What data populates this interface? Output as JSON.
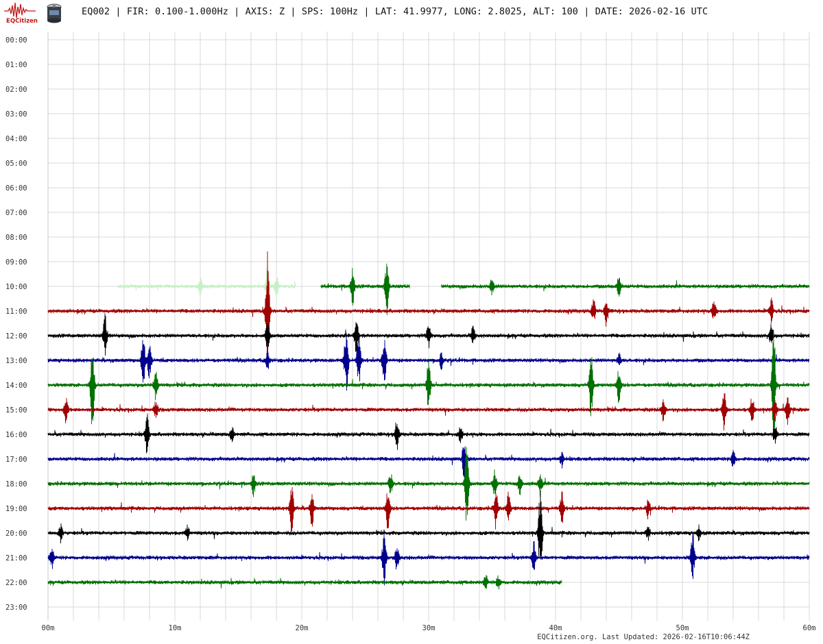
{
  "header": {
    "logo_text": "EQCitizen",
    "title": "EQ002 | FIR: 0.100-1.000Hz | AXIS: Z | SPS: 100Hz | LAT: 41.9977, LONG: 2.8025, ALT: 100 | DATE: 2026-02-16 UTC"
  },
  "footer": {
    "updated": "EQCitizen.org. Last Updated: 2026-02-16T10:06:44Z"
  },
  "colors": {
    "faint_green": "#c8f0c8",
    "green": "#007000",
    "red": "#a00000",
    "black": "#000000",
    "blue": "#00008c",
    "grid": "#d8d8d8",
    "logo_red": "#c01818"
  },
  "chart_data": {
    "type": "line",
    "title": "",
    "xlabel": "",
    "ylabel": "",
    "grid": true,
    "x_unit": "minutes",
    "xlim": [
      0,
      60
    ],
    "x_ticks": [
      "00m",
      "10m",
      "20m",
      "30m",
      "40m",
      "50m",
      "60m"
    ],
    "y_ticks": [
      "00:00",
      "01:00",
      "02:00",
      "03:00",
      "04:00",
      "05:00",
      "06:00",
      "07:00",
      "08:00",
      "09:00",
      "10:00",
      "11:00",
      "12:00",
      "13:00",
      "14:00",
      "15:00",
      "16:00",
      "17:00",
      "18:00",
      "19:00",
      "20:00",
      "21:00",
      "22:00",
      "23:00"
    ],
    "series": [
      {
        "hour": "10:00",
        "color": "faint_green",
        "segments": [
          [
            5.5,
            19.5
          ]
        ],
        "spikes": [
          [
            12.0,
            0.4
          ],
          [
            17.3,
            1.0
          ],
          [
            18.0,
            0.5
          ]
        ]
      },
      {
        "hour": "10:00",
        "color": "green",
        "segments": [
          [
            21.5,
            28.5
          ],
          [
            31.0,
            60
          ]
        ],
        "spikes": [
          [
            24.0,
            0.8
          ],
          [
            26.7,
            1.3
          ],
          [
            35.0,
            0.4
          ],
          [
            45.0,
            0.5
          ]
        ]
      },
      {
        "hour": "11:00",
        "color": "red",
        "segments": [
          [
            0,
            60
          ]
        ],
        "spikes": [
          [
            17.3,
            2.5
          ],
          [
            43.0,
            0.5
          ],
          [
            44.0,
            0.6
          ],
          [
            52.5,
            0.5
          ],
          [
            57.0,
            0.6
          ]
        ]
      },
      {
        "hour": "12:00",
        "color": "black",
        "segments": [
          [
            0,
            60
          ]
        ],
        "spikes": [
          [
            4.5,
            1.0
          ],
          [
            17.3,
            0.6
          ],
          [
            24.3,
            0.9
          ],
          [
            30.0,
            0.5
          ],
          [
            33.5,
            0.4
          ],
          [
            57.0,
            0.5
          ]
        ]
      },
      {
        "hour": "13:00",
        "color": "blue",
        "segments": [
          [
            0,
            60
          ]
        ],
        "spikes": [
          [
            7.5,
            1.2
          ],
          [
            8.0,
            0.9
          ],
          [
            17.3,
            0.4
          ],
          [
            23.5,
            1.6
          ],
          [
            24.5,
            1.3
          ],
          [
            26.5,
            1.2
          ],
          [
            31.0,
            0.4
          ],
          [
            45.0,
            0.3
          ]
        ]
      },
      {
        "hour": "14:00",
        "color": "green",
        "segments": [
          [
            0,
            60
          ]
        ],
        "spikes": [
          [
            3.5,
            2.0
          ],
          [
            8.5,
            0.7
          ],
          [
            30.0,
            1.2
          ],
          [
            42.8,
            1.5
          ],
          [
            45.0,
            0.8
          ],
          [
            57.2,
            2.5
          ]
        ]
      },
      {
        "hour": "15:00",
        "color": "red",
        "segments": [
          [
            0,
            60
          ]
        ],
        "spikes": [
          [
            1.4,
            0.6
          ],
          [
            8.5,
            0.4
          ],
          [
            48.5,
            0.6
          ],
          [
            53.3,
            0.9
          ],
          [
            55.5,
            0.6
          ],
          [
            57.3,
            0.5
          ],
          [
            58.3,
            0.6
          ]
        ]
      },
      {
        "hour": "16:00",
        "color": "black",
        "segments": [
          [
            0,
            60
          ]
        ],
        "spikes": [
          [
            7.8,
            0.9
          ],
          [
            14.5,
            0.3
          ],
          [
            27.5,
            0.7
          ],
          [
            32.5,
            0.4
          ],
          [
            57.3,
            0.4
          ]
        ]
      },
      {
        "hour": "17:00",
        "color": "blue",
        "segments": [
          [
            0,
            60
          ]
        ],
        "spikes": [
          [
            32.8,
            0.8
          ],
          [
            40.5,
            0.3
          ],
          [
            54.0,
            0.4
          ]
        ]
      },
      {
        "hour": "18:00",
        "color": "green",
        "segments": [
          [
            0,
            60
          ]
        ],
        "spikes": [
          [
            16.2,
            0.5
          ],
          [
            27.0,
            0.5
          ],
          [
            33.0,
            1.8
          ],
          [
            35.2,
            0.6
          ],
          [
            37.2,
            0.5
          ],
          [
            38.8,
            0.5
          ]
        ]
      },
      {
        "hour": "19:00",
        "color": "red",
        "segments": [
          [
            0,
            60
          ]
        ],
        "spikes": [
          [
            19.2,
            1.2
          ],
          [
            20.8,
            0.8
          ],
          [
            26.8,
            1.0
          ],
          [
            35.3,
            0.9
          ],
          [
            36.3,
            0.7
          ],
          [
            40.5,
            0.8
          ],
          [
            47.3,
            0.4
          ]
        ]
      },
      {
        "hour": "20:00",
        "color": "black",
        "segments": [
          [
            0,
            60
          ]
        ],
        "spikes": [
          [
            1.0,
            0.4
          ],
          [
            11.0,
            0.3
          ],
          [
            38.8,
            2.0
          ],
          [
            47.3,
            0.3
          ],
          [
            51.3,
            0.3
          ]
        ]
      },
      {
        "hour": "21:00",
        "color": "blue",
        "segments": [
          [
            0,
            60
          ]
        ],
        "spikes": [
          [
            0.3,
            0.5
          ],
          [
            26.5,
            1.3
          ],
          [
            27.5,
            0.6
          ],
          [
            38.3,
            0.7
          ],
          [
            50.8,
            1.2
          ]
        ]
      },
      {
        "hour": "22:00",
        "color": "green",
        "segments": [
          [
            0,
            40.5
          ]
        ],
        "spikes": [
          [
            34.5,
            0.3
          ],
          [
            35.5,
            0.3
          ]
        ]
      }
    ]
  }
}
